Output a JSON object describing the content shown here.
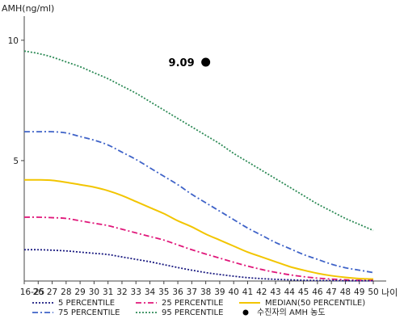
{
  "chart_data": {
    "type": "line",
    "title": "",
    "ylabel": "AMH(ng/ml)",
    "xlabel": "나이",
    "ylim": [
      0,
      11
    ],
    "x": [
      "16-25",
      "26",
      "27",
      "28",
      "29",
      "30",
      "31",
      "32",
      "33",
      "34",
      "35",
      "36",
      "37",
      "38",
      "39",
      "40",
      "41",
      "42",
      "43",
      "44",
      "45",
      "46",
      "47",
      "48",
      "49",
      "50"
    ],
    "y_ticks": [
      {
        "value": 5,
        "label": "5"
      },
      {
        "value": 10,
        "label": "10"
      }
    ],
    "series": [
      {
        "name": "95 PERCENTILE",
        "color": "#2e8b57",
        "dash": "2,2",
        "values": [
          9.55,
          9.45,
          9.3,
          9.1,
          8.9,
          8.65,
          8.4,
          8.1,
          7.8,
          7.45,
          7.1,
          6.75,
          6.4,
          6.05,
          5.7,
          5.3,
          4.95,
          4.6,
          4.25,
          3.9,
          3.55,
          3.2,
          2.9,
          2.6,
          2.35,
          2.1
        ]
      },
      {
        "name": "75 PERCENTILE",
        "color": "#3f63c8",
        "dash": "7,3,2,3",
        "values": [
          6.2,
          6.2,
          6.2,
          6.15,
          6.0,
          5.85,
          5.65,
          5.35,
          5.05,
          4.7,
          4.35,
          4.0,
          3.6,
          3.25,
          2.9,
          2.55,
          2.2,
          1.9,
          1.6,
          1.35,
          1.1,
          0.9,
          0.7,
          0.55,
          0.45,
          0.35
        ]
      },
      {
        "name": "MEDIAN(50 PERCENTILE)",
        "color": "#f2c500",
        "dash": "",
        "values": [
          4.2,
          4.2,
          4.18,
          4.1,
          4.0,
          3.9,
          3.75,
          3.55,
          3.3,
          3.05,
          2.8,
          2.5,
          2.25,
          1.95,
          1.7,
          1.45,
          1.2,
          1.0,
          0.8,
          0.6,
          0.45,
          0.32,
          0.22,
          0.15,
          0.1,
          0.08
        ]
      },
      {
        "name": "25 PERCENTILE",
        "color": "#e0177a",
        "dash": "7,3,2,3",
        "values": [
          2.65,
          2.65,
          2.63,
          2.6,
          2.5,
          2.4,
          2.3,
          2.15,
          2.0,
          1.85,
          1.7,
          1.5,
          1.3,
          1.12,
          0.95,
          0.78,
          0.62,
          0.48,
          0.36,
          0.26,
          0.18,
          0.12,
          0.08,
          0.05,
          0.03,
          0.02
        ]
      },
      {
        "name": "5 PERCENTILE",
        "color": "#1a1a80",
        "dash": "2,2",
        "values": [
          1.3,
          1.3,
          1.28,
          1.25,
          1.2,
          1.15,
          1.1,
          1.0,
          0.9,
          0.8,
          0.68,
          0.56,
          0.45,
          0.35,
          0.27,
          0.2,
          0.14,
          0.1,
          0.07,
          0.05,
          0.03,
          0.02,
          0.02,
          0.01,
          0.01,
          0.01
        ]
      }
    ],
    "point": {
      "x": "38",
      "y": 9.09,
      "label": "9.09",
      "color": "#000000"
    },
    "grid": false
  },
  "legend": {
    "items": [
      {
        "label": "5 PERCENTILE",
        "series": 4
      },
      {
        "label": "25 PERCENTILE",
        "series": 3
      },
      {
        "label": "MEDIAN(50 PERCENTILE)",
        "series": 2
      },
      {
        "label": "75 PERCENTILE",
        "series": 1
      },
      {
        "label": "95 PERCENTILE",
        "series": 0
      }
    ],
    "marker_label": "수진자의 AMH 농도"
  }
}
